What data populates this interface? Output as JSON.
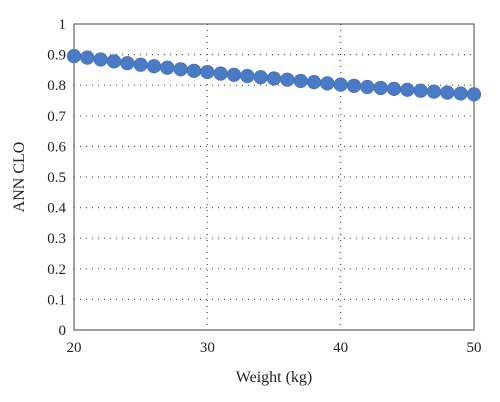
{
  "chart_data": {
    "type": "scatter",
    "xlabel": "Weight (kg)",
    "ylabel": "ANN CLO",
    "xlim": [
      20,
      50
    ],
    "ylim": [
      0,
      1
    ],
    "xticks": [
      "20",
      "30",
      "40",
      "50"
    ],
    "yticks": [
      "0",
      "0.1",
      "0.2",
      "0.3",
      "0.4",
      "0.5",
      "0.6",
      "0.7",
      "0.8",
      "0.9",
      "1"
    ],
    "grid": true,
    "series": [
      {
        "color": "#4a7bc4",
        "marker": "circle",
        "x": [
          20,
          21,
          22,
          23,
          24,
          25,
          26,
          27,
          28,
          29,
          30,
          31,
          32,
          33,
          34,
          35,
          36,
          37,
          38,
          39,
          40,
          41,
          42,
          43,
          44,
          45,
          46,
          47,
          48,
          49,
          50
        ],
        "y": [
          0.895,
          0.89,
          0.884,
          0.878,
          0.872,
          0.867,
          0.862,
          0.857,
          0.852,
          0.847,
          0.843,
          0.838,
          0.834,
          0.83,
          0.826,
          0.822,
          0.818,
          0.814,
          0.81,
          0.806,
          0.802,
          0.798,
          0.794,
          0.791,
          0.788,
          0.785,
          0.782,
          0.779,
          0.776,
          0.773,
          0.77
        ]
      }
    ]
  }
}
